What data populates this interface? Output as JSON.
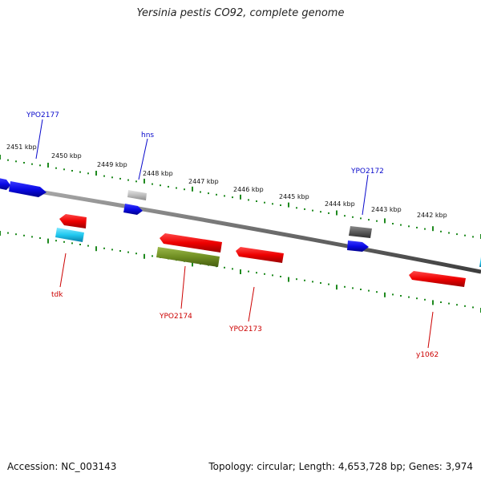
{
  "title": "Yersinia pestis CO92, complete genome",
  "footer": {
    "accession": "Accession: NC_003143",
    "summary": "Topology: circular; Length: 4,653,728 bp; Genes: 3,974"
  },
  "colors": {
    "backbone": "#7a7a7a",
    "ticks": "#1f8a1f",
    "forward_label": "#0a0acc",
    "reverse_label": "#cc0000"
  },
  "kbp_labels": [
    "2451 kbp",
    "2450 kbp",
    "2449 kbp",
    "2448 kbp",
    "2447 kbp",
    "2446 kbp",
    "2445 kbp",
    "2444 kbp",
    "2443 kbp",
    "2442 kbp"
  ],
  "gene_labels": {
    "forward": [
      "YPO2177",
      "hns",
      "YPO2172"
    ],
    "reverse": [
      "tdk",
      "YPO2174",
      "YPO2173",
      "y1062"
    ]
  },
  "features": [
    {
      "color": "blue",
      "strand": "forward"
    },
    {
      "color": "blue",
      "strand": "forward"
    },
    {
      "color": "light-gray",
      "strand": "forward"
    },
    {
      "color": "blue",
      "strand": "forward"
    },
    {
      "color": "dark-gray",
      "strand": "forward"
    },
    {
      "color": "blue",
      "strand": "forward"
    },
    {
      "color": "cyan",
      "strand": "forward"
    },
    {
      "color": "red",
      "strand": "reverse"
    },
    {
      "color": "cyan",
      "strand": "reverse"
    },
    {
      "color": "red",
      "strand": "reverse"
    },
    {
      "color": "olive",
      "strand": "reverse"
    },
    {
      "color": "red",
      "strand": "reverse"
    },
    {
      "color": "red",
      "strand": "reverse"
    }
  ]
}
